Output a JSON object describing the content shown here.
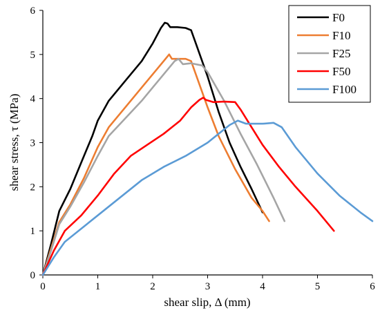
{
  "chart_data": {
    "type": "line",
    "xlabel": "shear slip, Δ (mm)",
    "ylabel": "shear stress,  τ (MPa)",
    "xlim": [
      0,
      6
    ],
    "ylim": [
      0,
      6
    ],
    "x_ticks": [
      "0",
      "1",
      "2",
      "3",
      "4",
      "5",
      "6"
    ],
    "y_ticks": [
      "0",
      "1",
      "2",
      "3",
      "4",
      "5",
      "6"
    ],
    "grid": false,
    "legend_position": "top-right",
    "series": [
      {
        "name": "F0",
        "color": "#000000",
        "points": [
          [
            0,
            0
          ],
          [
            0.15,
            0.7
          ],
          [
            0.3,
            1.45
          ],
          [
            0.5,
            1.95
          ],
          [
            0.7,
            2.55
          ],
          [
            0.9,
            3.15
          ],
          [
            1.0,
            3.5
          ],
          [
            1.2,
            3.95
          ],
          [
            1.5,
            4.4
          ],
          [
            1.8,
            4.85
          ],
          [
            2.0,
            5.25
          ],
          [
            2.15,
            5.6
          ],
          [
            2.22,
            5.72
          ],
          [
            2.27,
            5.7
          ],
          [
            2.32,
            5.62
          ],
          [
            2.45,
            5.62
          ],
          [
            2.6,
            5.6
          ],
          [
            2.7,
            5.55
          ],
          [
            2.8,
            5.2
          ],
          [
            3.0,
            4.5
          ],
          [
            3.2,
            3.7
          ],
          [
            3.4,
            3.0
          ],
          [
            3.6,
            2.45
          ],
          [
            3.8,
            1.95
          ],
          [
            4.0,
            1.42
          ]
        ]
      },
      {
        "name": "F10",
        "color": "#ED7D31",
        "points": [
          [
            0,
            0
          ],
          [
            0.15,
            0.6
          ],
          [
            0.3,
            1.2
          ],
          [
            0.5,
            1.6
          ],
          [
            0.75,
            2.2
          ],
          [
            1.0,
            2.9
          ],
          [
            1.2,
            3.35
          ],
          [
            1.5,
            3.8
          ],
          [
            1.8,
            4.25
          ],
          [
            2.0,
            4.55
          ],
          [
            2.2,
            4.85
          ],
          [
            2.3,
            5.0
          ],
          [
            2.35,
            4.9
          ],
          [
            2.45,
            4.9
          ],
          [
            2.6,
            4.9
          ],
          [
            2.7,
            4.85
          ],
          [
            2.8,
            4.5
          ],
          [
            3.0,
            3.8
          ],
          [
            3.2,
            3.15
          ],
          [
            3.5,
            2.4
          ],
          [
            3.8,
            1.75
          ],
          [
            4.0,
            1.45
          ],
          [
            4.12,
            1.22
          ]
        ]
      },
      {
        "name": "F25",
        "color": "#A5A5A5",
        "points": [
          [
            0,
            0
          ],
          [
            0.15,
            0.55
          ],
          [
            0.3,
            1.15
          ],
          [
            0.5,
            1.55
          ],
          [
            0.75,
            2.1
          ],
          [
            1.0,
            2.7
          ],
          [
            1.2,
            3.15
          ],
          [
            1.5,
            3.55
          ],
          [
            1.8,
            3.95
          ],
          [
            2.0,
            4.25
          ],
          [
            2.2,
            4.55
          ],
          [
            2.4,
            4.85
          ],
          [
            2.47,
            4.9
          ],
          [
            2.55,
            4.78
          ],
          [
            2.7,
            4.8
          ],
          [
            2.9,
            4.75
          ],
          [
            3.0,
            4.6
          ],
          [
            3.3,
            3.95
          ],
          [
            3.6,
            3.2
          ],
          [
            3.9,
            2.5
          ],
          [
            4.2,
            1.75
          ],
          [
            4.4,
            1.22
          ]
        ]
      },
      {
        "name": "F50",
        "color": "#FF0000",
        "points": [
          [
            0,
            0
          ],
          [
            0.2,
            0.55
          ],
          [
            0.4,
            1.0
          ],
          [
            0.7,
            1.35
          ],
          [
            1.0,
            1.8
          ],
          [
            1.3,
            2.3
          ],
          [
            1.6,
            2.7
          ],
          [
            1.9,
            2.95
          ],
          [
            2.2,
            3.2
          ],
          [
            2.5,
            3.5
          ],
          [
            2.7,
            3.8
          ],
          [
            2.85,
            3.97
          ],
          [
            2.92,
            4.02
          ],
          [
            2.97,
            3.97
          ],
          [
            3.1,
            3.92
          ],
          [
            3.3,
            3.93
          ],
          [
            3.5,
            3.92
          ],
          [
            3.6,
            3.75
          ],
          [
            3.8,
            3.35
          ],
          [
            4.0,
            2.95
          ],
          [
            4.3,
            2.45
          ],
          [
            4.6,
            2.0
          ],
          [
            5.0,
            1.45
          ],
          [
            5.3,
            1.0
          ]
        ]
      },
      {
        "name": "F100",
        "color": "#5B9BD5",
        "points": [
          [
            0,
            0
          ],
          [
            0.2,
            0.4
          ],
          [
            0.4,
            0.75
          ],
          [
            0.6,
            0.95
          ],
          [
            1.0,
            1.35
          ],
          [
            1.4,
            1.75
          ],
          [
            1.8,
            2.15
          ],
          [
            2.2,
            2.45
          ],
          [
            2.6,
            2.7
          ],
          [
            3.0,
            3.0
          ],
          [
            3.2,
            3.2
          ],
          [
            3.4,
            3.4
          ],
          [
            3.55,
            3.5
          ],
          [
            3.7,
            3.43
          ],
          [
            4.0,
            3.43
          ],
          [
            4.2,
            3.45
          ],
          [
            4.35,
            3.35
          ],
          [
            4.6,
            2.9
          ],
          [
            5.0,
            2.3
          ],
          [
            5.4,
            1.8
          ],
          [
            5.8,
            1.4
          ],
          [
            6.0,
            1.22
          ]
        ]
      }
    ]
  }
}
